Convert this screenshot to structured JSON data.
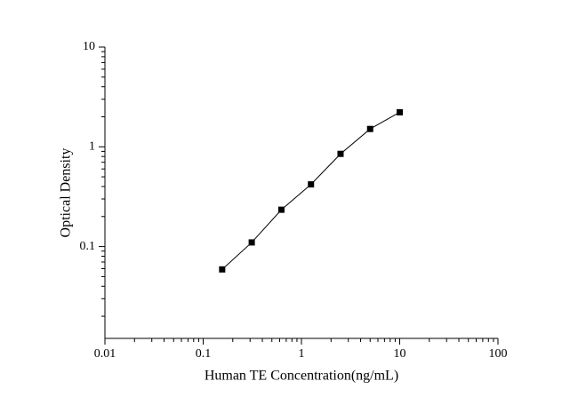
{
  "chart_data": {
    "type": "line",
    "x_label": "Human TE Concentration(ng/mL)",
    "y_label": "Optical Density",
    "x": [
      0.156,
      0.312,
      0.625,
      1.25,
      2.5,
      5,
      10
    ],
    "series": [
      {
        "color": "#000000",
        "values": [
          0.059,
          0.11,
          0.234,
          0.42,
          0.85,
          1.51,
          2.22
        ]
      }
    ],
    "xlim": [
      0.01,
      100
    ],
    "xticks": [
      0.01,
      0.1,
      1,
      10,
      100
    ],
    "ylim": [
      0.012,
      10
    ],
    "yticks": [
      0.1,
      1,
      10
    ],
    "xscale": "log",
    "yscale": "log",
    "grid": false,
    "markers": true
  }
}
